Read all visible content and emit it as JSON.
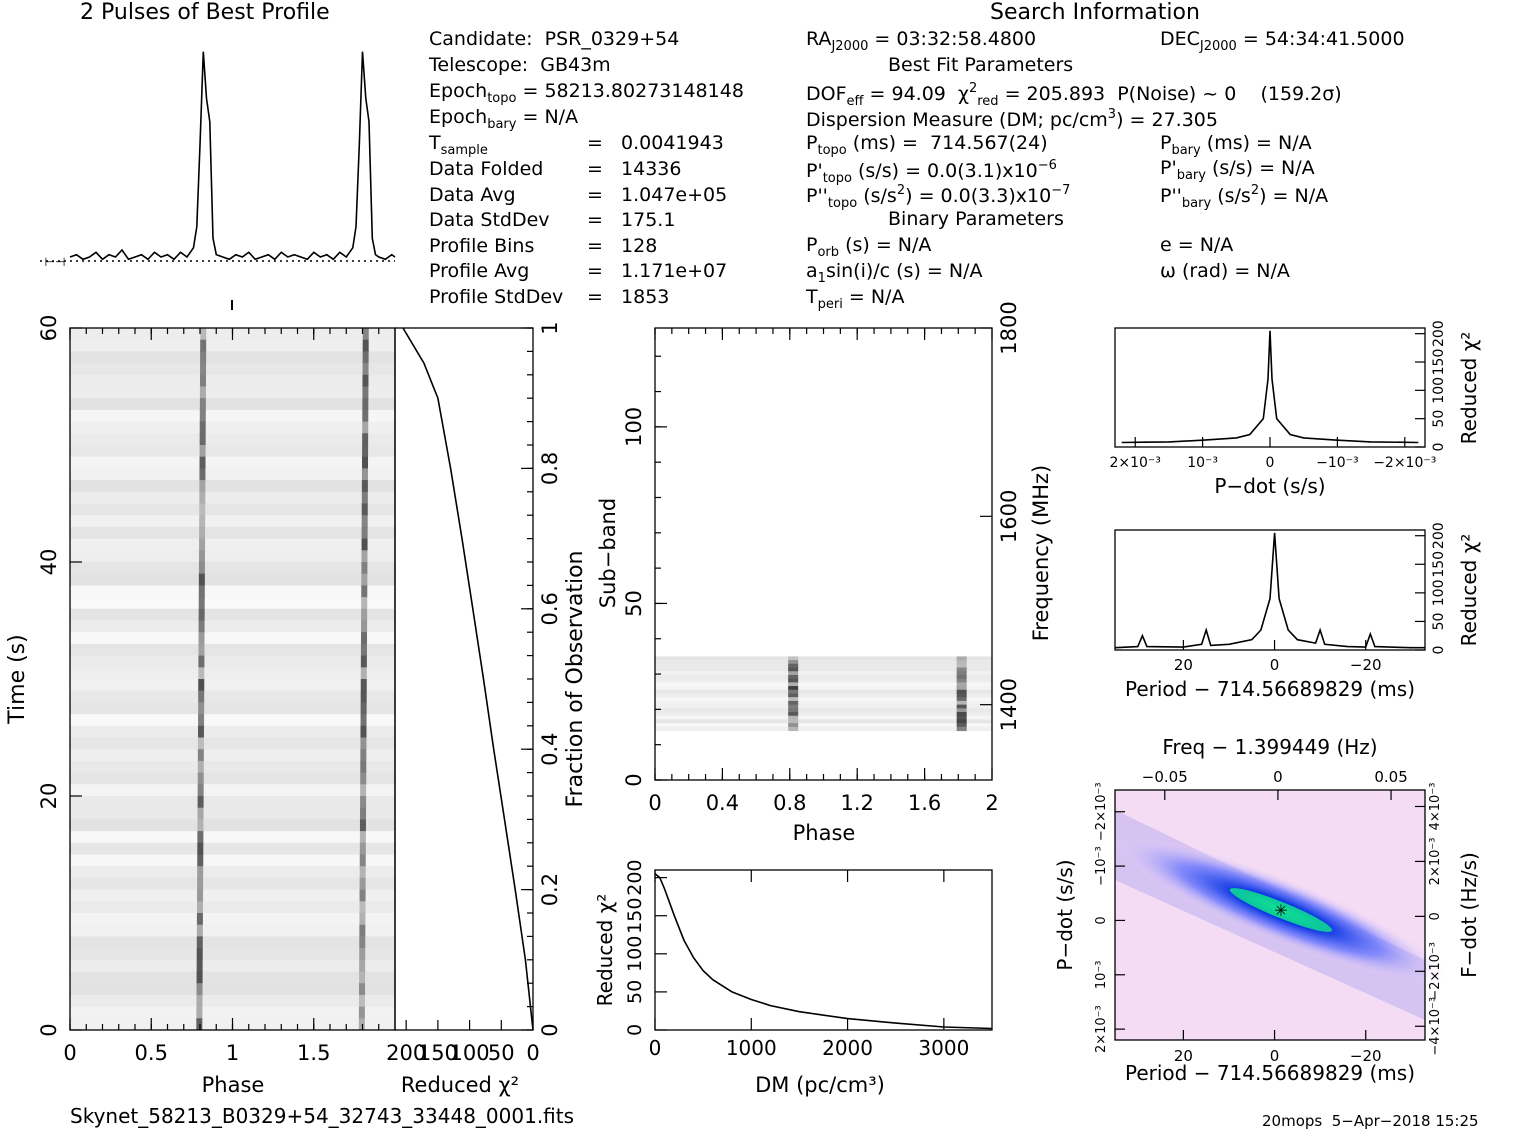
{
  "header": {
    "profile_title": "2 Pulses of Best Profile",
    "search_title": "Search Information",
    "best_fit_title": "Best Fit Parameters",
    "binary_title": "Binary Parameters"
  },
  "info": {
    "candidate": "Candidate:  PSR_0329+54",
    "telescope": "Telescope:  GB43m",
    "epoch_topo_label": "Epoch",
    "epoch_topo_sub": "topo",
    "epoch_topo_value": " = 58213.80273148148",
    "epoch_bary_label": "Epoch",
    "epoch_bary_sub": "bary",
    "epoch_bary_value": " = N/A",
    "tsample_label": "T",
    "tsample_sub": "sample",
    "tsample_value": "=   0.0041943",
    "rows": [
      {
        "label": "Data Folded",
        "value": "=   14336"
      },
      {
        "label": "Data Avg",
        "value": "=   1.047e+05"
      },
      {
        "label": "Data StdDev",
        "value": "=   175.1"
      },
      {
        "label": "Profile Bins",
        "value": "=   128"
      },
      {
        "label": "Profile Avg",
        "value": "=   1.171e+07"
      },
      {
        "label": "Profile StdDev",
        "value": "=   1853"
      }
    ],
    "ra": "= 03:32:58.4800",
    "dec": "= 54:34:41.5000",
    "dof": "= 94.09",
    "chi2": "= 205.893",
    "pnoise": "P(Noise) ~ 0    (159.2σ)",
    "dm": "Dispersion Measure (DM; pc/cm",
    "dm_value": ") = 27.305",
    "ptopo": "(ms) =  714.567(24)",
    "pbary": "(ms) = N/A",
    "pdtopo": "(s/s) = 0.0(3.1)x10",
    "pdtopo_exp": "−6",
    "pdbary": "(s/s) = N/A",
    "pddtopo": "(s/s",
    "pddtopo_rest": ") = 0.0(3.3)x10",
    "pddtopo_exp": "−7",
    "pddbary": ") = N/A",
    "porb": "(s) = N/A",
    "e": "e = N/A",
    "a1": "sin(i)/c (s) = N/A",
    "omega": "ω (rad) = N/A",
    "tperi": "= N/A"
  },
  "footer": {
    "filename": "Skynet_58213_B0329+54_32743_33448_0001.fits",
    "stamp": "20mops  5−Apr−2018 15:25"
  },
  "chart_data": [
    {
      "id": "profile",
      "type": "line",
      "title": "2 Pulses of Best Profile",
      "x": [
        0,
        0.04,
        0.08,
        0.12,
        0.16,
        0.2,
        0.24,
        0.28,
        0.32,
        0.36,
        0.4,
        0.44,
        0.48,
        0.52,
        0.56,
        0.6,
        0.64,
        0.68,
        0.72,
        0.76,
        0.78,
        0.8,
        0.82,
        0.84,
        0.86,
        0.88,
        0.9,
        0.94,
        0.98,
        1.02,
        1.06,
        1.1,
        1.14,
        1.18,
        1.22,
        1.26,
        1.3,
        1.34,
        1.38,
        1.42,
        1.46,
        1.5,
        1.54,
        1.58,
        1.62,
        1.66,
        1.7,
        1.74,
        1.76,
        1.78,
        1.8,
        1.82,
        1.84,
        1.86,
        1.88,
        1.9,
        1.94,
        1.98,
        2.0
      ],
      "y": [
        0.12,
        0.13,
        0.11,
        0.12,
        0.14,
        0.11,
        0.13,
        0.12,
        0.15,
        0.11,
        0.12,
        0.13,
        0.11,
        0.14,
        0.12,
        0.13,
        0.11,
        0.14,
        0.12,
        0.16,
        0.25,
        0.6,
        1.0,
        0.8,
        0.7,
        0.2,
        0.13,
        0.12,
        0.11,
        0.13,
        0.12,
        0.14,
        0.11,
        0.12,
        0.13,
        0.11,
        0.14,
        0.12,
        0.13,
        0.12,
        0.11,
        0.14,
        0.12,
        0.13,
        0.11,
        0.14,
        0.12,
        0.16,
        0.25,
        0.6,
        1.0,
        0.8,
        0.7,
        0.2,
        0.13,
        0.12,
        0.11,
        0.13,
        0.12
      ],
      "ylim": [
        0,
        1.05
      ]
    },
    {
      "id": "time-phase",
      "type": "heatmap",
      "xlabel": "Phase",
      "ylabel": "Time (s)",
      "xticks": [
        "0",
        "0.5",
        "1",
        "1.5"
      ],
      "yticks": [
        "0",
        "20",
        "40",
        "60"
      ],
      "xlim": [
        0,
        2
      ],
      "ylim": [
        0,
        60
      ],
      "pulse_phases": [
        0.82,
        1.82
      ]
    },
    {
      "id": "chi2-vs-time",
      "type": "line",
      "xlabel": "Reduced χ²",
      "ylabel": "Fraction of Observation",
      "xticks": [
        "200",
        "150",
        "100",
        "50",
        "0"
      ],
      "yticks": [
        "0",
        "0.2",
        "0.4",
        "0.6",
        "0.8",
        "1"
      ],
      "fraction": [
        0,
        0.1,
        0.2,
        0.3,
        0.4,
        0.5,
        0.6,
        0.7,
        0.8,
        0.9,
        0.95,
        1.0
      ],
      "chi2": [
        0,
        12,
        28,
        45,
        62,
        78,
        95,
        112,
        130,
        150,
        172,
        205
      ]
    },
    {
      "id": "subband-phase",
      "type": "heatmap",
      "xlabel": "Phase",
      "ylabel": "Sub−band",
      "ylabel2": "Frequency (MHz)",
      "xticks": [
        "0",
        "0.4",
        "0.8",
        "1.2",
        "1.6",
        "2"
      ],
      "yticks": [
        "0",
        "50",
        "100"
      ],
      "yticks2": [
        "1400",
        "1600",
        "1800"
      ],
      "xlim": [
        0,
        2
      ],
      "ylim": [
        0,
        128
      ],
      "data_subbands": [
        14,
        35
      ],
      "pulse_phases": [
        0.82,
        1.82
      ]
    },
    {
      "id": "chi2-vs-dm",
      "type": "line",
      "xlabel": "DM (pc/cm³)",
      "ylabel": "Reduced χ²",
      "xticks": [
        "0",
        "1000",
        "2000",
        "3000"
      ],
      "yticks": [
        "0",
        "50",
        "100",
        "150",
        "200"
      ],
      "xlim": [
        0,
        3500
      ],
      "ylim": [
        0,
        210
      ],
      "x": [
        0,
        50,
        100,
        200,
        300,
        400,
        500,
        600,
        800,
        1000,
        1200,
        1500,
        2000,
        2500,
        3000,
        3500
      ],
      "y": [
        205,
        200,
        185,
        150,
        118,
        95,
        78,
        66,
        50,
        40,
        32,
        24,
        15,
        9,
        4,
        2
      ]
    },
    {
      "id": "chi2-vs-pdot",
      "type": "line",
      "xlabel": "P−dot (s/s)",
      "ylabel": "Reduced χ²",
      "xticks": [
        "2×10⁻³",
        "10⁻³",
        "0",
        "−10⁻³",
        "−2×10⁻³"
      ],
      "yticks": [
        "0",
        "50",
        "100",
        "150",
        "200"
      ],
      "x": [
        0.0022,
        0.0015,
        0.001,
        0.0005,
        0.0003,
        0.0001,
        3e-05,
        0,
        -3e-05,
        -0.0001,
        -0.0003,
        -0.0005,
        -0.001,
        -0.0015,
        -0.0022
      ],
      "y": [
        8,
        9,
        12,
        16,
        22,
        50,
        120,
        205,
        120,
        50,
        22,
        16,
        12,
        9,
        8
      ],
      "xlim": [
        0.0023,
        -0.0023
      ],
      "ylim": [
        0,
        210
      ]
    },
    {
      "id": "chi2-vs-period",
      "type": "line",
      "xlabel": "Period − 714.56689829 (ms)",
      "ylabel": "Reduced χ²",
      "xticks": [
        "20",
        "0",
        "−20"
      ],
      "yticks": [
        "0",
        "50",
        "100",
        "150",
        "200"
      ],
      "x": [
        35,
        30,
        29,
        28,
        20,
        16,
        15,
        14,
        10,
        5,
        3,
        1,
        0,
        -1,
        -3,
        -5,
        -9,
        -10,
        -11,
        -16,
        -20,
        -21,
        -22,
        -30,
        -33
      ],
      "y": [
        4,
        6,
        25,
        6,
        5,
        10,
        35,
        8,
        10,
        18,
        35,
        90,
        205,
        90,
        35,
        18,
        12,
        35,
        10,
        6,
        5,
        28,
        6,
        4,
        4
      ],
      "xlim": [
        35,
        -33
      ],
      "ylim": [
        0,
        210
      ]
    },
    {
      "id": "period-pdot",
      "type": "heatmap",
      "xlabel": "Period − 714.56689829 (ms)",
      "ylabel": "P−dot (s/s)",
      "xlabel2": "Freq − 1.399449 (Hz)",
      "ylabel2": "F−dot (Hz/s)",
      "xticks": [
        "20",
        "0",
        "−20"
      ],
      "yticks": [
        "2×10⁻³",
        "10⁻³",
        "0",
        "−10⁻³",
        "−2×10⁻³"
      ],
      "xticks2": [
        "−0.05",
        "0",
        "0.05"
      ],
      "yticks2": [
        "−4×10⁻³",
        "−2×10⁻³",
        "0",
        "2×10⁻³",
        "4×10⁻³"
      ]
    }
  ]
}
